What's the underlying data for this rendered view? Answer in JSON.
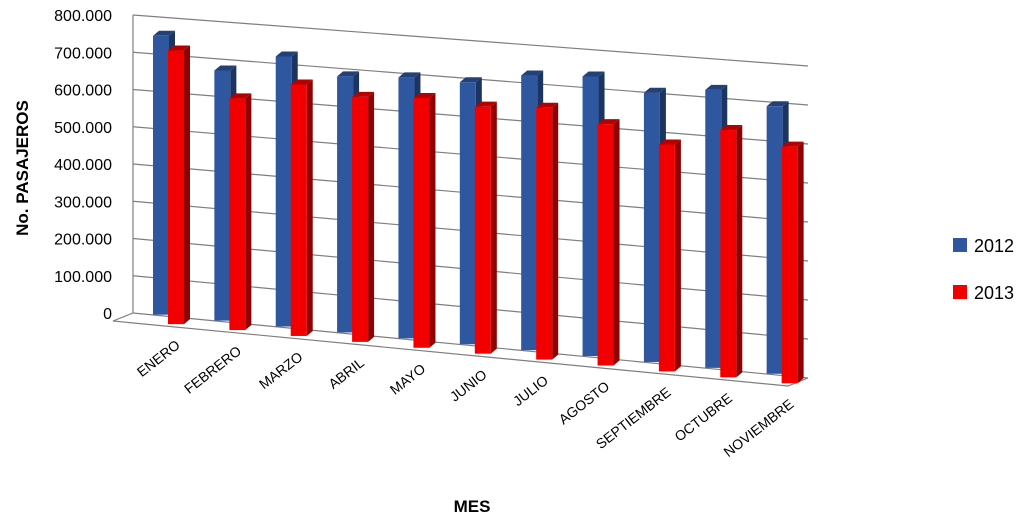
{
  "chart_data": {
    "type": "bar",
    "title": "",
    "xlabel": "MES",
    "ylabel": "No. PASAJEROS",
    "ylim": [
      0,
      800000
    ],
    "y_ticks": [
      "0",
      "100.000",
      "200.000",
      "300.000",
      "400.000",
      "500.000",
      "600.000",
      "700.000",
      "800.000"
    ],
    "categories": [
      "ENERO",
      "FEBRERO",
      "MARZO",
      "ABRIL",
      "MAYO",
      "JUNIO",
      "JULIO",
      "AGOSTO",
      "SEPTIEMBRE",
      "OCTUBRE",
      "NOVIEMBRE"
    ],
    "series": [
      {
        "name": "2012",
        "color": "#2E57A0",
        "values": [
          750000,
          670000,
          720000,
          680000,
          690000,
          690000,
          720000,
          730000,
          700000,
          720000,
          690000
        ]
      },
      {
        "name": "2013",
        "color": "#F20000",
        "values": [
          735000,
          620000,
          670000,
          650000,
          660000,
          650000,
          660000,
          630000,
          590000,
          640000,
          610000
        ]
      }
    ],
    "legend_position": "right",
    "grid": true,
    "style": "3d-clustered-column"
  }
}
